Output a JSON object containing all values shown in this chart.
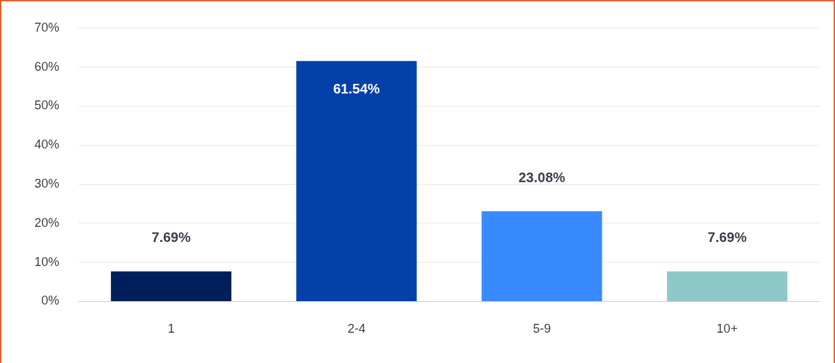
{
  "chart_data": {
    "type": "bar",
    "categories": [
      "1",
      "2-4",
      "5-9",
      "10+"
    ],
    "values": [
      7.69,
      61.54,
      23.08,
      7.69
    ],
    "colors": [
      "#001f5b",
      "#0341a9",
      "#3a8aff",
      "#8fc8c8"
    ],
    "value_labels": [
      "7.69%",
      "61.54%",
      "23.08%",
      "7.69%"
    ],
    "ylim": [
      0,
      70
    ],
    "yticks": [
      {
        "value": 0,
        "label": "0%"
      },
      {
        "value": 10,
        "label": "10%"
      },
      {
        "value": 20,
        "label": "20%"
      },
      {
        "value": 30,
        "label": "30%"
      },
      {
        "value": 40,
        "label": "40%"
      },
      {
        "value": 50,
        "label": "50%"
      },
      {
        "value": 60,
        "label": "60%"
      },
      {
        "value": 70,
        "label": "70%"
      }
    ],
    "grid": "y",
    "legend": false
  }
}
